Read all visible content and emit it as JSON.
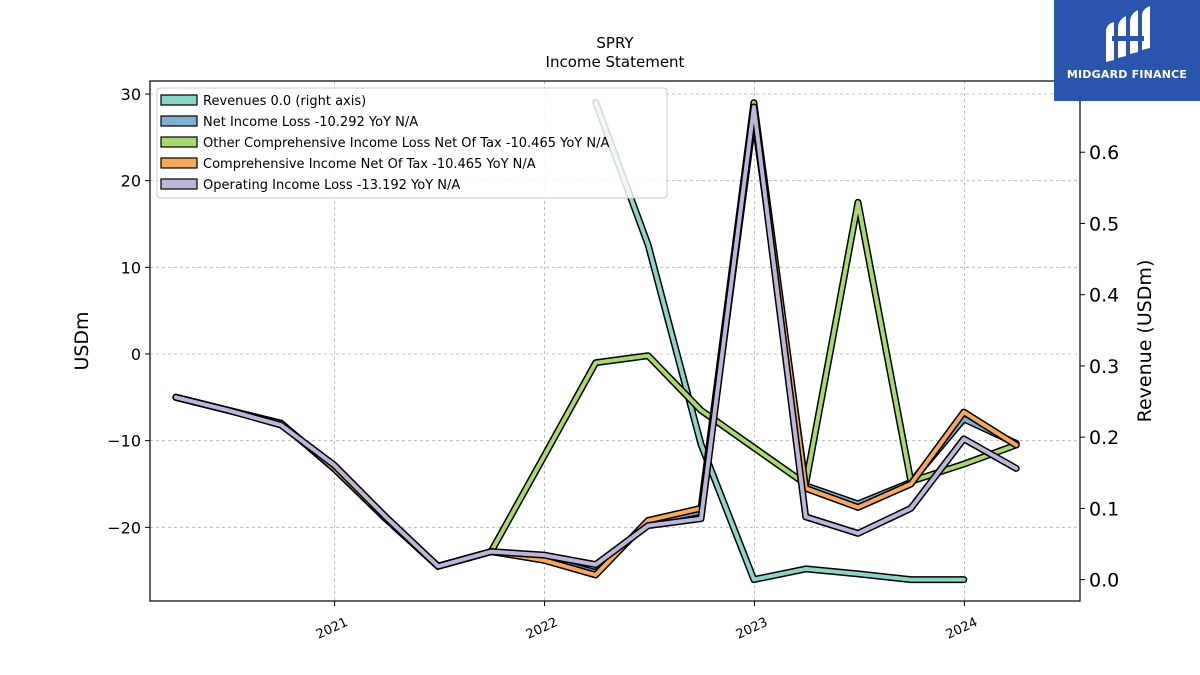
{
  "title": "SPRY",
  "subtitle": "Income Statement",
  "logo": {
    "text": "MIDGARD FINANCE",
    "bg_color": "#2a55ad"
  },
  "chart_data": {
    "type": "line",
    "ylabel": "USDm",
    "ylabel_right": "Revenue (USDm)",
    "ylim": [
      -28.5,
      31.5
    ],
    "ylim_right": [
      -0.03,
      0.7
    ],
    "yticks": [
      30,
      20,
      10,
      0,
      -10,
      -20
    ],
    "ytick_labels": [
      "30",
      "20",
      "10",
      "0",
      "−10",
      "−20"
    ],
    "yticks_right": [
      0.6,
      0.5,
      0.4,
      0.3,
      0.2,
      0.1,
      0.0
    ],
    "ytick_labels_right": [
      "0.6",
      "0.5",
      "0.4",
      "0.3",
      "0.2",
      "0.1",
      "0.0"
    ],
    "xlim": [
      "2020-02-15",
      "2024-07-20"
    ],
    "xticks": [
      "2021-01-01",
      "2022-01-01",
      "2023-01-01",
      "2024-01-01"
    ],
    "xtick_labels": [
      "2021",
      "2022",
      "2023",
      "2024"
    ],
    "grid": true,
    "legend_position": "top-left",
    "series": [
      {
        "name": "Operating Income Loss  -13.192 YoY N/A",
        "axis": "left",
        "color": "#bcb6d8",
        "x": [
          "2020-03-31",
          "2020-06-30",
          "2020-09-30",
          "2020-12-31",
          "2021-03-31",
          "2021-06-30",
          "2021-09-30",
          "2021-12-31",
          "2022-03-31",
          "2022-06-30",
          "2022-09-30",
          "2022-12-31",
          "2023-03-31",
          "2023-06-30",
          "2023-09-30",
          "2023-12-31",
          "2024-03-31"
        ],
        "values": [
          -5.0,
          -6.5,
          -8.2,
          -12.8,
          -18.8,
          -24.5,
          -22.8,
          -23.2,
          -24.3,
          -19.8,
          -19.0,
          28.5,
          -18.8,
          -20.7,
          -17.8,
          -9.8,
          -13.2
        ]
      },
      {
        "name": "Comprehensive Income Net Of Tax  -10.465 YoY N/A",
        "axis": "left",
        "color": "#f6a85c",
        "x": [
          "2020-03-31",
          "2020-06-30",
          "2020-09-30",
          "2020-12-31",
          "2021-03-31",
          "2021-06-30",
          "2021-09-30",
          "2021-12-31",
          "2022-03-31",
          "2022-06-30",
          "2022-09-30",
          "2022-12-31",
          "2023-03-31",
          "2023-06-30",
          "2023-09-30",
          "2023-12-31",
          "2024-03-31"
        ],
        "values": [
          -5.0,
          -6.5,
          -8.0,
          -13.2,
          -19.0,
          -24.5,
          -22.8,
          -23.8,
          -25.5,
          -19.2,
          -17.8,
          29.0,
          -15.5,
          -17.7,
          -15.0,
          -6.7,
          -10.5
        ]
      },
      {
        "name": "Other Comprehensive Income Loss Net Of Tax  -10.465 YoY N/A",
        "axis": "left",
        "color": "#a8d86e",
        "x": [
          "2020-03-31",
          "2020-06-30",
          "2020-09-30",
          "2020-12-31",
          "2021-03-31",
          "2021-06-30",
          "2021-09-30",
          "2021-12-31",
          "2022-03-31",
          "2022-06-30",
          "2022-09-30",
          "2022-12-31",
          "2023-03-31",
          "2023-06-30",
          "2023-09-30",
          "2023-12-31",
          "2024-03-31"
        ],
        "values": [
          -5.0,
          -6.5,
          -8.0,
          -13.2,
          -19.0,
          -24.5,
          -22.8,
          -11.8,
          -1.0,
          -0.2,
          -6.5,
          -10.8,
          -15.0,
          17.5,
          -14.7,
          -12.7,
          -10.5
        ]
      },
      {
        "name": "Net Income Loss  -10.292 YoY N/A",
        "axis": "left",
        "color": "#7fb0d3",
        "x": [
          "2020-03-31",
          "2020-06-30",
          "2020-09-30",
          "2020-12-31",
          "2021-03-31",
          "2021-06-30",
          "2021-09-30",
          "2021-12-31",
          "2022-03-31",
          "2022-06-30",
          "2022-09-30",
          "2022-12-31",
          "2023-03-31",
          "2023-06-30",
          "2023-09-30",
          "2023-12-31",
          "2024-03-31"
        ],
        "values": [
          -5.0,
          -6.5,
          -8.0,
          -13.2,
          -19.0,
          -24.5,
          -22.8,
          -23.6,
          -25.2,
          -19.4,
          -18.2,
          27.5,
          -15.2,
          -17.3,
          -14.8,
          -7.5,
          -10.3
        ]
      },
      {
        "name": "Revenues  0.0 (right axis)",
        "axis": "right",
        "color": "#8dd3c7",
        "x": [
          "2022-03-31",
          "2022-06-30",
          "2022-09-30",
          "2022-12-31",
          "2023-03-31",
          "2023-06-30",
          "2023-09-30",
          "2023-12-31"
        ],
        "values": [
          0.67,
          0.47,
          0.19,
          0.0,
          0.015,
          0.008,
          0.0,
          0.0
        ]
      }
    ],
    "legend_order": [
      "Revenues  0.0 (right axis)",
      "Net Income Loss  -10.292 YoY N/A",
      "Other Comprehensive Income Loss Net Of Tax  -10.465 YoY N/A",
      "Comprehensive Income Net Of Tax  -10.465 YoY N/A",
      "Operating Income Loss  -13.192 YoY N/A"
    ]
  }
}
